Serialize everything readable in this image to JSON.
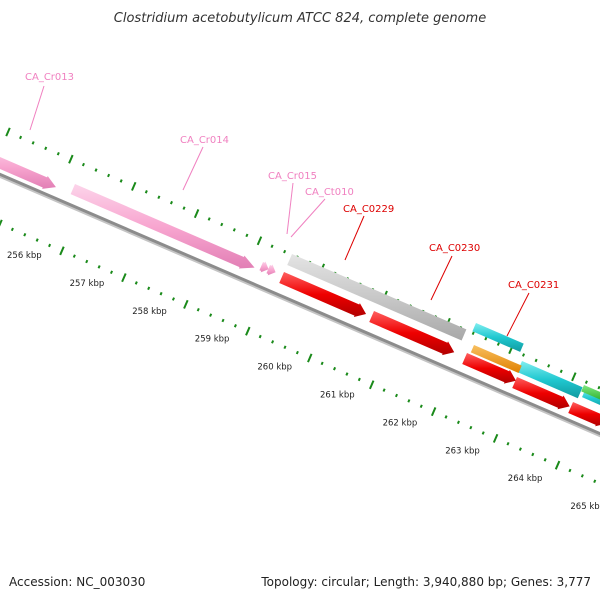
{
  "title": "Clostridium acetobutylicum ATCC 824, complete genome",
  "footer": {
    "accession": "Accession: NC_003030",
    "summary": "Topology: circular; Length: 3,940,880 bp; Genes: 3,777"
  },
  "colors": {
    "pink_feature": "#f8a6d0",
    "pink_label": "#f080c0",
    "red_feature": "#ee0000",
    "red_label": "#dd0000",
    "gray_feature": "#c8c8c8",
    "cyan_feature": "#20c8d0",
    "orange_feature": "#f09010",
    "green_feature": "#30c830",
    "backbone": "#8c8c8c",
    "tick": "#1a8a1a"
  },
  "scale_labels": [
    "256 kbp",
    "257 kbp",
    "258 kbp",
    "259 kbp",
    "260 kbp",
    "261 kbp",
    "262 kbp",
    "263 kbp",
    "264 kbp",
    "265 kbp"
  ],
  "feature_labels": [
    {
      "id": "CA_Cr013",
      "color": "pink"
    },
    {
      "id": "CA_Cr014",
      "color": "pink"
    },
    {
      "id": "CA_Cr015",
      "color": "pink"
    },
    {
      "id": "CA_Ct010",
      "color": "pink"
    },
    {
      "id": "CA_C0229",
      "color": "red"
    },
    {
      "id": "CA_C0230",
      "color": "red"
    },
    {
      "id": "CA_C0231",
      "color": "red"
    }
  ]
}
